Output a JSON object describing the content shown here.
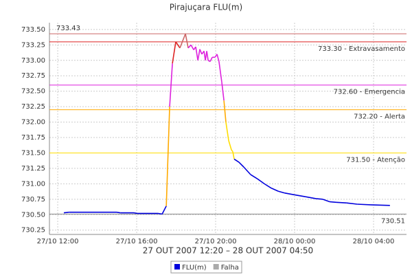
{
  "chart_data": {
    "type": "line",
    "title": "Pirajuçara FLU(m)",
    "subtitle": "27 OUT 2007 12:20 – 28 OUT 2007 04:50",
    "x": [
      12.31,
      12.56,
      13.25,
      14.99,
      15.17,
      15.86,
      16.03,
      17.08,
      17.29,
      17.5,
      17.67,
      17.81,
      17.98,
      18.19,
      18.47,
      18.61,
      18.75,
      18.89,
      18.99,
      19.1,
      19.2,
      19.3,
      19.41,
      19.48,
      19.55,
      19.62,
      19.72,
      19.83,
      19.97,
      20.07,
      20.17,
      20.31,
      20.42,
      20.52,
      20.66,
      20.8,
      20.87,
      20.94,
      21.18,
      21.43,
      21.77,
      22.12,
      22.47,
      22.82,
      23.17,
      23.51,
      24.03,
      24.56,
      25.08,
      25.43,
      25.77,
      26.12,
      26.64,
      27.17,
      27.86,
      28.83
    ],
    "series": [
      {
        "name": "FLU(m)",
        "color": "#0000dd",
        "values": [
          730.53,
          730.54,
          730.54,
          730.54,
          730.53,
          730.53,
          730.52,
          730.52,
          730.51,
          730.64,
          732.25,
          732.95,
          733.3,
          733.2,
          733.43,
          733.2,
          733.25,
          733.17,
          733.22,
          733.0,
          733.18,
          733.1,
          733.15,
          733.0,
          733.15,
          733.0,
          732.98,
          733.05,
          733.05,
          733.1,
          732.98,
          732.65,
          732.35,
          732.0,
          731.7,
          731.55,
          731.52,
          731.4,
          731.35,
          731.27,
          731.15,
          731.08,
          731.0,
          730.93,
          730.88,
          730.85,
          730.82,
          730.79,
          730.76,
          730.75,
          730.71,
          730.7,
          730.69,
          730.67,
          730.66,
          730.65
        ]
      },
      {
        "name": "Falha",
        "color": "#aaaaaa",
        "values": [
          null,
          null,
          null,
          null,
          null,
          null,
          null,
          null,
          null,
          null,
          null,
          null,
          null,
          null,
          null,
          null,
          null,
          null,
          null,
          null,
          null,
          null,
          null,
          null,
          null,
          null,
          null,
          null,
          null,
          null,
          null,
          null,
          null,
          null,
          null,
          null,
          null,
          null,
          null,
          null,
          null,
          null,
          null,
          null,
          null,
          null,
          null,
          null,
          null,
          null,
          null,
          null,
          null,
          null,
          null,
          null
        ]
      }
    ],
    "thresholds": [
      {
        "value": 733.43,
        "label": "733.43",
        "color": "#cc6666"
      },
      {
        "value": 733.3,
        "label": "733.30 - Extravasamento",
        "color": "#dd2222"
      },
      {
        "value": 732.6,
        "label": "732.60 - Emergencia",
        "color": "#dd22dd"
      },
      {
        "value": 732.2,
        "label": "732.20 - Alerta",
        "color": "#ffaa00"
      },
      {
        "value": 731.5,
        "label": "731.50 - Atenção",
        "color": "#ffdd00"
      },
      {
        "value": 730.51,
        "label": "730.51",
        "color": "#888888"
      }
    ],
    "xlim": [
      11.58,
      29.67
    ],
    "xticks": [
      {
        "value": 12,
        "label": "27/10 12:00"
      },
      {
        "value": 16,
        "label": "27/10 16:00"
      },
      {
        "value": 20,
        "label": "27/10 20:00"
      },
      {
        "value": 24,
        "label": "28/10 00:00"
      },
      {
        "value": 28,
        "label": "28/10 04:00"
      }
    ],
    "ylim": [
      730.18,
      733.61
    ],
    "yticks": [
      730.25,
      {
        "value": 730.5,
        "label": "730.50"
      },
      730.75,
      {
        "value": 731,
        "label": "731.00"
      },
      731.25,
      {
        "value": 731.5,
        "label": "731.50"
      },
      731.75,
      {
        "value": 732,
        "label": "732.00"
      },
      732.25,
      {
        "value": 732.5,
        "label": "732.50"
      },
      732.75,
      {
        "value": 733,
        "label": "733.00"
      },
      733.25,
      {
        "value": 733.5,
        "label": "733.50"
      }
    ],
    "grid": true
  }
}
